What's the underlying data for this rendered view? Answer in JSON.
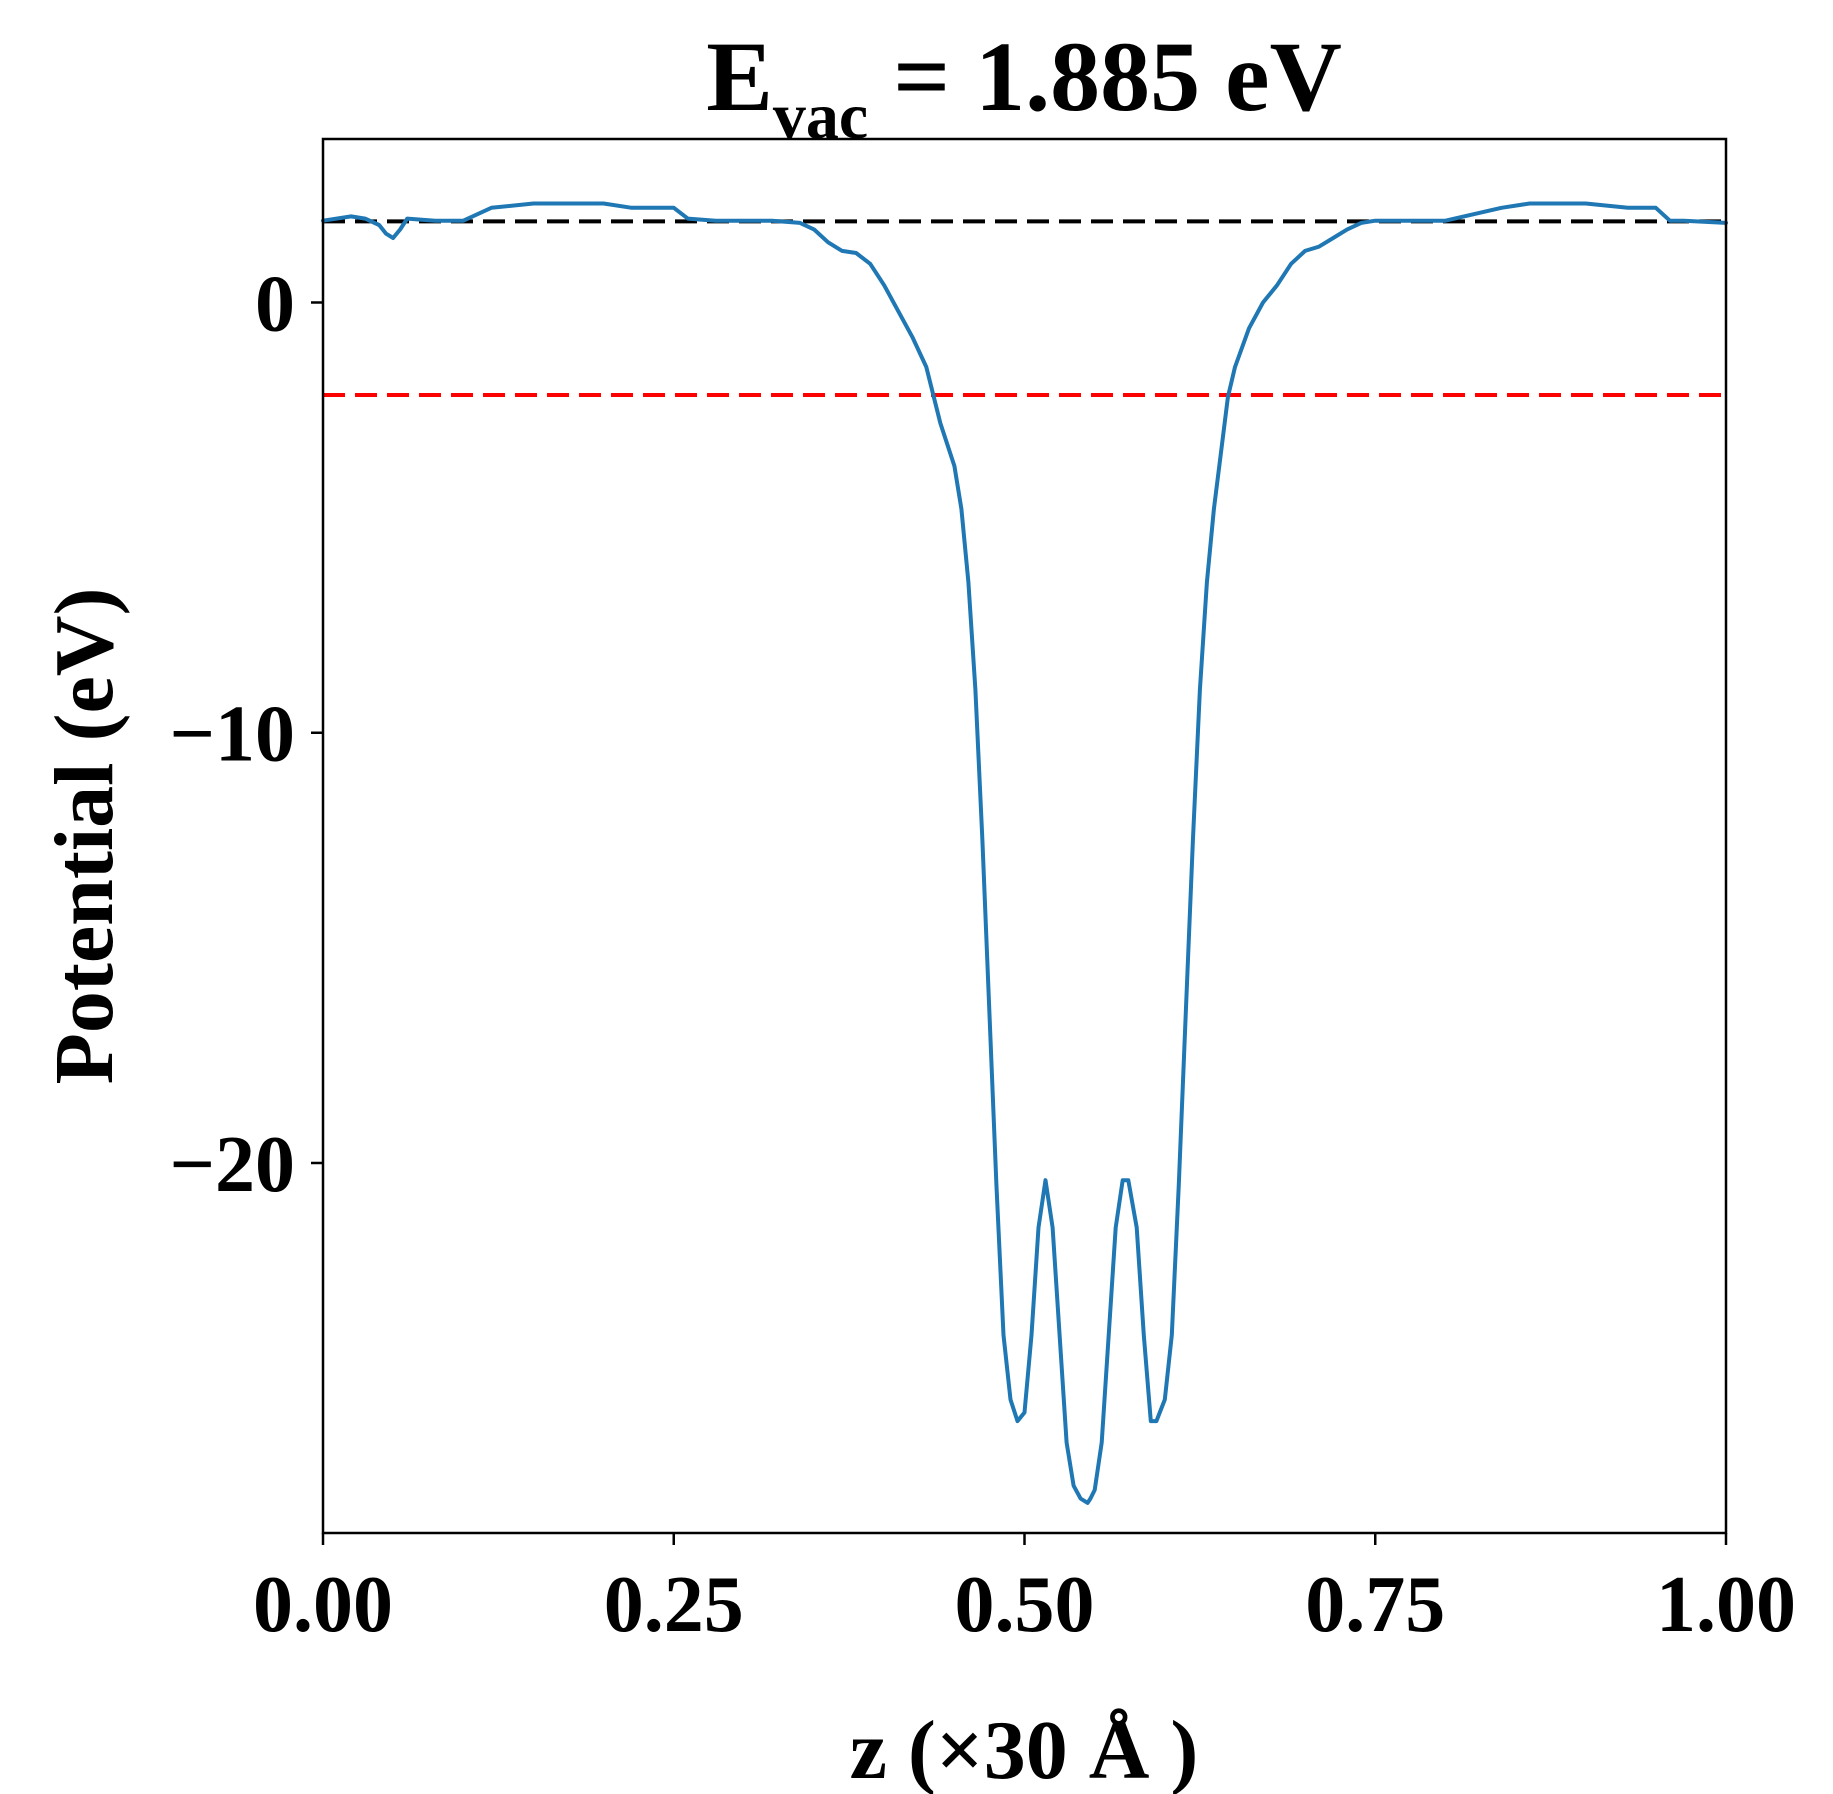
{
  "chart_data": {
    "type": "line",
    "title_main": "E",
    "title_sub": "vac",
    "title_rest": " = 1.885 eV",
    "xlabel": "z (×30 Å )",
    "ylabel": "Potential (eV)",
    "xlim": [
      0.0,
      1.0
    ],
    "ylim": [
      -28.6,
      3.8
    ],
    "x_ticks": [
      0.0,
      0.25,
      0.5,
      0.75,
      1.0
    ],
    "x_tick_labels": [
      "0.00",
      "0.25",
      "0.50",
      "0.75",
      "1.00"
    ],
    "y_ticks": [
      0,
      -10,
      -20
    ],
    "y_tick_labels": [
      "0",
      "−10",
      "−20"
    ],
    "grid": false,
    "legend": "none",
    "reference_lines": [
      {
        "y": 1.885,
        "color": "#000000",
        "style": "dashed"
      },
      {
        "y": -2.15,
        "color": "#ff0000",
        "style": "dashed"
      }
    ],
    "series": [
      {
        "color": "#1f77b4",
        "x": [
          0.0,
          0.02,
          0.03,
          0.04,
          0.045,
          0.05,
          0.055,
          0.06,
          0.08,
          0.1,
          0.12,
          0.15,
          0.18,
          0.2,
          0.22,
          0.25,
          0.26,
          0.28,
          0.3,
          0.32,
          0.34,
          0.35,
          0.36,
          0.37,
          0.38,
          0.39,
          0.4,
          0.41,
          0.42,
          0.43,
          0.44,
          0.45,
          0.455,
          0.46,
          0.465,
          0.47,
          0.475,
          0.48,
          0.485,
          0.49,
          0.495,
          0.5,
          0.505,
          0.51,
          0.515,
          0.52,
          0.525,
          0.53,
          0.535,
          0.54,
          0.545,
          0.547,
          0.55,
          0.555,
          0.56,
          0.565,
          0.57,
          0.574,
          0.58,
          0.585,
          0.59,
          0.594,
          0.6,
          0.605,
          0.61,
          0.615,
          0.62,
          0.625,
          0.63,
          0.635,
          0.64,
          0.645,
          0.65,
          0.66,
          0.67,
          0.68,
          0.69,
          0.7,
          0.71,
          0.72,
          0.73,
          0.74,
          0.75,
          0.8,
          0.84,
          0.86,
          0.88,
          0.9,
          0.93,
          0.95,
          0.96,
          0.97,
          1.0
        ],
        "y": [
          1.9,
          2.0,
          1.95,
          1.8,
          1.6,
          1.5,
          1.7,
          1.95,
          1.9,
          1.9,
          2.2,
          2.3,
          2.3,
          2.3,
          2.2,
          2.2,
          1.95,
          1.9,
          1.9,
          1.9,
          1.85,
          1.7,
          1.4,
          1.2,
          1.15,
          0.9,
          0.4,
          -0.2,
          -0.8,
          -1.5,
          -2.8,
          -3.8,
          -4.8,
          -6.5,
          -9.0,
          -12.5,
          -16.5,
          -20.5,
          -24.0,
          -25.5,
          -26.0,
          -25.8,
          -24.0,
          -21.5,
          -20.4,
          -21.5,
          -24.0,
          -26.5,
          -27.5,
          -27.8,
          -27.9,
          -27.8,
          -27.6,
          -26.5,
          -24.0,
          -21.5,
          -20.4,
          -20.4,
          -21.5,
          -24.0,
          -26.0,
          -26.0,
          -25.5,
          -24.0,
          -20.5,
          -16.5,
          -12.5,
          -9.0,
          -6.5,
          -4.8,
          -3.5,
          -2.2,
          -1.5,
          -0.6,
          0.0,
          0.4,
          0.9,
          1.2,
          1.3,
          1.5,
          1.7,
          1.85,
          1.9,
          1.9,
          2.2,
          2.3,
          2.3,
          2.3,
          2.2,
          2.2,
          1.9,
          1.9,
          1.85
        ]
      }
    ]
  }
}
